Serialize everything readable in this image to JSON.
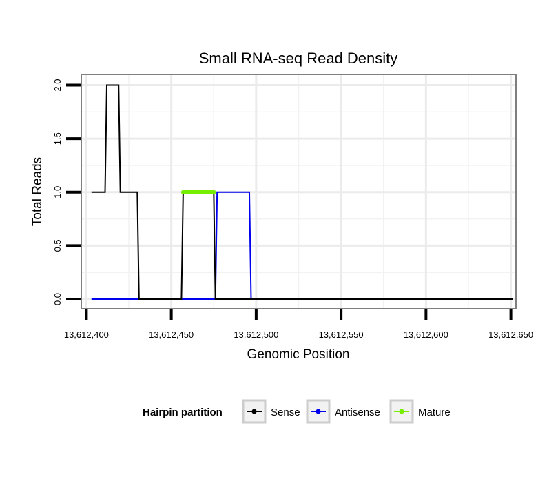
{
  "chart_data": {
    "type": "line",
    "title": "Small RNA-seq Read Density",
    "xlabel": "Genomic Position",
    "ylabel": "Total Reads",
    "xlim": [
      13612397,
      13612653
    ],
    "ylim": [
      -0.09,
      2.1
    ],
    "x_ticks": [
      13612400,
      13612450,
      13612500,
      13612550,
      13612600,
      13612650
    ],
    "x_tick_labels": [
      "13,612,400",
      "13,612,450",
      "13,612,500",
      "13,612,550",
      "13,612,600",
      "13,612,650"
    ],
    "y_ticks": [
      0,
      0.5,
      1,
      1.5,
      2
    ],
    "y_tick_labels": [
      "0.0",
      "0.5",
      "1.0",
      "1.5",
      "2.0"
    ],
    "grid": true,
    "legend": {
      "title": "Hairpin partition",
      "position": "bottom",
      "entries": [
        "Sense",
        "Antisense",
        "Mature"
      ]
    },
    "series": [
      {
        "name": "Sense",
        "color": "#000000",
        "x": [
          13612403,
          13612411,
          13612412,
          13612419,
          13612420,
          13612430,
          13612431,
          13612456,
          13612457,
          13612475,
          13612476,
          13612651
        ],
        "y": [
          1,
          1,
          2,
          2,
          1,
          1,
          0,
          0,
          1,
          1,
          0,
          0
        ]
      },
      {
        "name": "Antisense",
        "color": "#0000ee",
        "x": [
          13612403,
          13612476,
          13612477,
          13612496,
          13612497,
          13612651
        ],
        "y": [
          0,
          0,
          1,
          1,
          0,
          0
        ]
      },
      {
        "name": "Mature",
        "color": "#77ee00",
        "x": [
          13612457,
          13612475
        ],
        "y": [
          1,
          1
        ]
      }
    ]
  }
}
